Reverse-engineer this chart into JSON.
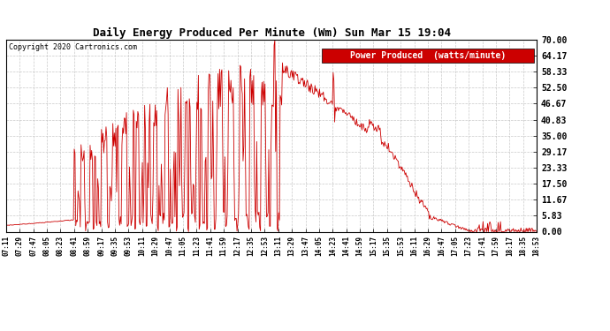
{
  "title": "Daily Energy Produced Per Minute (Wm) Sun Mar 15 19:04",
  "copyright": "Copyright 2020 Cartronics.com",
  "legend_label": "Power Produced  (watts/minute)",
  "legend_bg": "#cc0000",
  "legend_fg": "#ffffff",
  "line_color": "#cc0000",
  "background_color": "#ffffff",
  "grid_color": "#bbbbbb",
  "ylim": [
    0,
    70
  ],
  "yticks": [
    0.0,
    5.83,
    11.67,
    17.5,
    23.33,
    29.17,
    35.0,
    40.83,
    46.67,
    52.5,
    58.33,
    64.17,
    70.0
  ],
  "ytick_labels": [
    "0.00",
    "5.83",
    "11.67",
    "17.50",
    "23.33",
    "29.17",
    "35.00",
    "40.83",
    "46.67",
    "52.50",
    "58.33",
    "64.17",
    "70.00"
  ],
  "xtick_labels": [
    "07:11",
    "07:29",
    "07:47",
    "08:05",
    "08:23",
    "08:41",
    "08:59",
    "09:17",
    "09:35",
    "09:53",
    "10:11",
    "10:29",
    "10:47",
    "11:05",
    "11:23",
    "11:41",
    "11:59",
    "12:17",
    "12:35",
    "12:53",
    "13:11",
    "13:29",
    "13:47",
    "14:05",
    "14:23",
    "14:41",
    "14:59",
    "15:17",
    "15:35",
    "15:53",
    "16:11",
    "16:29",
    "16:47",
    "17:05",
    "17:23",
    "17:41",
    "17:59",
    "18:17",
    "18:35",
    "18:53"
  ],
  "title_fontsize": 9,
  "copyright_fontsize": 6,
  "ytick_fontsize": 7,
  "xtick_fontsize": 5.5
}
